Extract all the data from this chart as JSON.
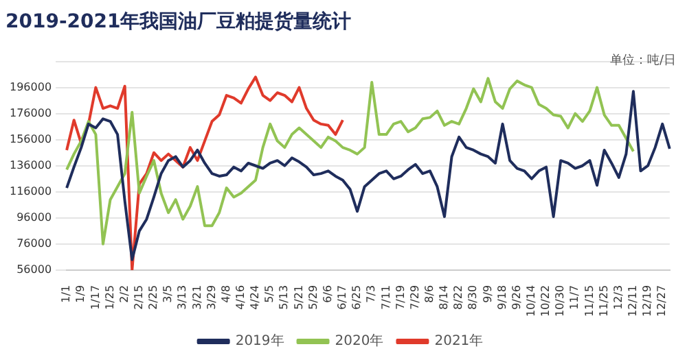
{
  "chart_data": {
    "type": "line",
    "title": "2019-2021年我国油厂豆粕提货量统计",
    "annotations": [
      "单位：吨/日"
    ],
    "categories": [
      "1/1",
      null,
      "1/9",
      null,
      "1/17",
      null,
      "1/25",
      null,
      "2/2",
      null,
      "2/15",
      null,
      "2/25",
      null,
      "3/5",
      null,
      "3/13",
      null,
      "3/21",
      null,
      "3/29",
      null,
      "4/8",
      null,
      "4/16",
      null,
      "4/24",
      null,
      "5/5",
      null,
      "5/13",
      null,
      "5/21",
      null,
      "5/29",
      null,
      "6/6",
      null,
      "6/17",
      null,
      "6/25",
      null,
      "7/3",
      null,
      "7/11",
      null,
      "7/19",
      null,
      "7/29",
      null,
      "8/6",
      null,
      "8/14",
      null,
      "8/22",
      null,
      "8/30",
      null,
      "9/9",
      null,
      "9/18",
      null,
      "9/26",
      null,
      "10/14",
      null,
      "10/22",
      null,
      "10/30",
      null,
      "11/7",
      null,
      "11/15",
      null,
      "11/25",
      null,
      "12/3",
      null,
      "12/11",
      null,
      "12/19",
      null,
      "12/27",
      null
    ],
    "series": [
      {
        "name": "2019年",
        "color": "#1f2d5c",
        "values": [
          119000,
          135000,
          150000,
          168000,
          165000,
          172000,
          170000,
          160000,
          109000,
          64000,
          86000,
          95000,
          112000,
          130000,
          140000,
          143000,
          135000,
          140000,
          148000,
          138000,
          130000,
          128000,
          129000,
          135000,
          132000,
          138000,
          136000,
          134000,
          138000,
          140000,
          136000,
          142000,
          139000,
          135000,
          129000,
          130000,
          132000,
          128000,
          125000,
          118000,
          101000,
          120000,
          125000,
          130000,
          132000,
          126000,
          128000,
          133000,
          137000,
          130000,
          132000,
          120000,
          97000,
          143000,
          158000,
          150000,
          148000,
          145000,
          143000,
          138000,
          168000,
          140000,
          134000,
          132000,
          126000,
          132000,
          135000,
          97000,
          140000,
          138000,
          134000,
          136000,
          140000,
          121000,
          148000,
          138000,
          127000,
          145000,
          193000,
          132000,
          136000,
          150000,
          168000,
          149000
        ]
      },
      {
        "name": "2020年",
        "color": "#92c353",
        "values": [
          133000,
          145000,
          155000,
          170000,
          160000,
          76000,
          110000,
          120000,
          130000,
          177000,
          115000,
          128000,
          140000,
          115000,
          100000,
          110000,
          95000,
          105000,
          120000,
          90000,
          90000,
          100000,
          119000,
          112000,
          115000,
          120000,
          125000,
          150000,
          168000,
          155000,
          150000,
          160000,
          165000,
          160000,
          155000,
          150000,
          158000,
          155000,
          150000,
          148000,
          145000,
          150000,
          200000,
          160000,
          160000,
          168000,
          170000,
          162000,
          165000,
          172000,
          173000,
          178000,
          167000,
          170000,
          168000,
          180000,
          195000,
          185000,
          203000,
          185000,
          180000,
          195000,
          201000,
          198000,
          196000,
          183000,
          180000,
          175000,
          174000,
          165000,
          176000,
          170000,
          178000,
          196000,
          175000,
          167000,
          167000,
          157000,
          147000,
          null,
          null,
          null,
          null,
          null
        ]
      },
      {
        "name": "2021年",
        "color": "#e03a2b",
        "values": [
          148000,
          171000,
          153000,
          168000,
          196000,
          180000,
          182000,
          180000,
          197000,
          56000,
          122000,
          130000,
          146000,
          140000,
          145000,
          140000,
          135000,
          150000,
          140000,
          155000,
          170000,
          175000,
          190000,
          188000,
          184000,
          195000,
          204000,
          190000,
          186000,
          192000,
          190000,
          185000,
          196000,
          180000,
          171000,
          168000,
          167000,
          160000,
          171000,
          null,
          null,
          null,
          null,
          null,
          null,
          null,
          null,
          null,
          null,
          null,
          null,
          null,
          null,
          null,
          null,
          null,
          null,
          null,
          null,
          null,
          null,
          null,
          null,
          null,
          null,
          null,
          null,
          null,
          null,
          null,
          null,
          null,
          null,
          null,
          null,
          null,
          null,
          null,
          null,
          null,
          null,
          null,
          null,
          null
        ]
      }
    ],
    "ylim": [
      56000,
      216000
    ],
    "yticks": [
      56000,
      76000,
      96000,
      116000,
      136000,
      156000,
      176000,
      196000,
      {
        "value": 216000,
        "label": null
      }
    ],
    "grid": "y",
    "legend": "bottom",
    "marker": "none",
    "line_style": "solid"
  }
}
